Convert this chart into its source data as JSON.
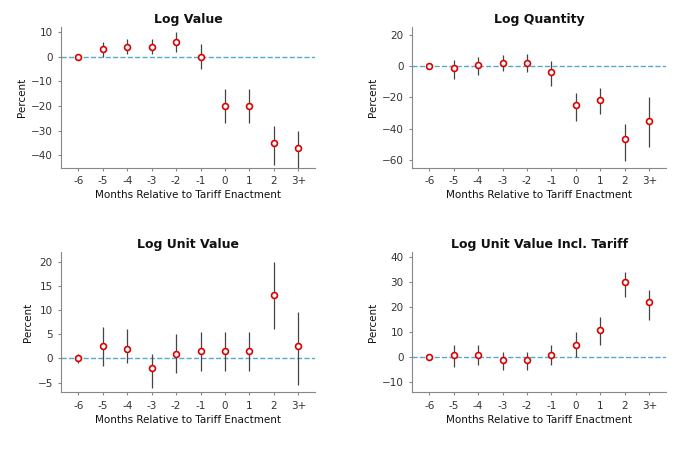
{
  "x_labels": [
    "-6",
    "-5",
    "-4",
    "-3",
    "-2",
    "-1",
    "0",
    "1",
    "2",
    "3+"
  ],
  "x_vals": [
    -6,
    -5,
    -4,
    -3,
    -2,
    -1,
    0,
    1,
    2,
    3
  ],
  "panel1": {
    "title": "Log Value",
    "ylim": [
      -45,
      12
    ],
    "yticks": [
      10,
      0,
      -10,
      -20,
      -30,
      -40
    ],
    "values": [
      0,
      3,
      4,
      4,
      6,
      0,
      -20,
      -20,
      -35,
      -37
    ],
    "yerr_lo": [
      1,
      3,
      3,
      3,
      4,
      5,
      7,
      7,
      9,
      8
    ],
    "yerr_hi": [
      1,
      3,
      3,
      3,
      4,
      5,
      7,
      7,
      7,
      7
    ]
  },
  "panel2": {
    "title": "Log Quantity",
    "ylim": [
      -65,
      25
    ],
    "yticks": [
      20,
      0,
      -20,
      -40,
      -60
    ],
    "values": [
      0,
      -1,
      1,
      2,
      2,
      -4,
      -25,
      -22,
      -47,
      -35
    ],
    "yerr_lo": [
      1,
      7,
      7,
      5,
      6,
      9,
      10,
      9,
      14,
      17
    ],
    "yerr_hi": [
      1,
      5,
      5,
      5,
      6,
      7,
      8,
      8,
      10,
      15
    ]
  },
  "panel3": {
    "title": "Log Unit Value",
    "ylim": [
      -7,
      22
    ],
    "yticks": [
      20,
      15,
      10,
      5,
      0,
      -5
    ],
    "values": [
      0,
      2.5,
      2,
      -2,
      1,
      1.5,
      1.5,
      1.5,
      13,
      2.5
    ],
    "yerr_lo": [
      1,
      4,
      3,
      4,
      4,
      4,
      4,
      4,
      7,
      8
    ],
    "yerr_hi": [
      1,
      4,
      4,
      3,
      4,
      4,
      4,
      4,
      7,
      7
    ]
  },
  "panel4": {
    "title": "Log Unit Value Incl. Tariff",
    "ylim": [
      -14,
      42
    ],
    "yticks": [
      40,
      30,
      20,
      10,
      0,
      -10
    ],
    "values": [
      0,
      1,
      1,
      -1,
      -1,
      1,
      5,
      11,
      30,
      22
    ],
    "yerr_lo": [
      1,
      5,
      4,
      4,
      4,
      4,
      5,
      6,
      6,
      7
    ],
    "yerr_hi": [
      1,
      4,
      4,
      3,
      3,
      4,
      5,
      5,
      4,
      5
    ]
  },
  "dot_facecolor": "#FFFFFF",
  "dot_edgecolor": "#DD0000",
  "dot_size": 18,
  "dot_linewidth": 1.2,
  "errorbar_color": "#444444",
  "errorbar_linewidth": 0.9,
  "dashed_color": "#55AACC",
  "dashed_linewidth": 1.0,
  "xlabel": "Months Relative to Tariff Enactment",
  "ylabel": "Percent",
  "title_fontsize": 9,
  "title_color": "#111111",
  "label_fontsize": 7.5,
  "label_color": "#111111",
  "tick_fontsize": 7.5,
  "tick_color": "#333333",
  "background_color": "#FFFFFF",
  "spine_color": "#888888"
}
